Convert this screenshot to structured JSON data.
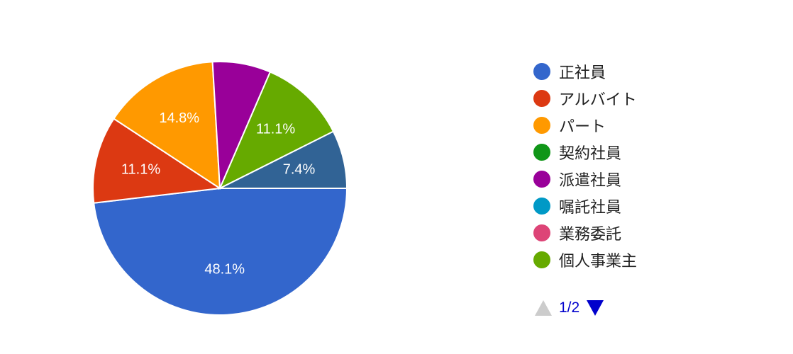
{
  "chart_data": {
    "type": "pie",
    "categories": [
      "正社員",
      "アルバイト",
      "パート",
      "契約社員",
      "派遣社員",
      "嘱託社員",
      "業務委託",
      "個人事業主",
      ""
    ],
    "values": [
      48.1,
      11.1,
      14.8,
      0,
      7.4,
      0,
      0,
      11.1,
      7.4
    ],
    "labels": [
      "48.1%",
      "11.1%",
      "14.8%",
      "",
      "",
      "",
      "",
      "11.1%",
      "7.4%"
    ],
    "colors": [
      "#3366cc",
      "#dc3912",
      "#ff9900",
      "#109618",
      "#990099",
      "#0099c6",
      "#dd4477",
      "#66aa00",
      "#316395"
    ],
    "legend_position": "right"
  },
  "legend": {
    "items": [
      {
        "label": "正社員",
        "color": "#3366cc"
      },
      {
        "label": "アルバイト",
        "color": "#dc3912"
      },
      {
        "label": "パート",
        "color": "#ff9900"
      },
      {
        "label": "契約社員",
        "color": "#109618"
      },
      {
        "label": "派遣社員",
        "color": "#990099"
      },
      {
        "label": "嘱託社員",
        "color": "#0099c6"
      },
      {
        "label": "業務委託",
        "color": "#dd4477"
      },
      {
        "label": "個人事業主",
        "color": "#66aa00"
      }
    ],
    "pager": {
      "text": "1/2",
      "prev_icon": "triangle-up-icon",
      "next_icon": "triangle-down-icon",
      "prev_color": "#cccccc",
      "next_color": "#0000cc"
    }
  }
}
